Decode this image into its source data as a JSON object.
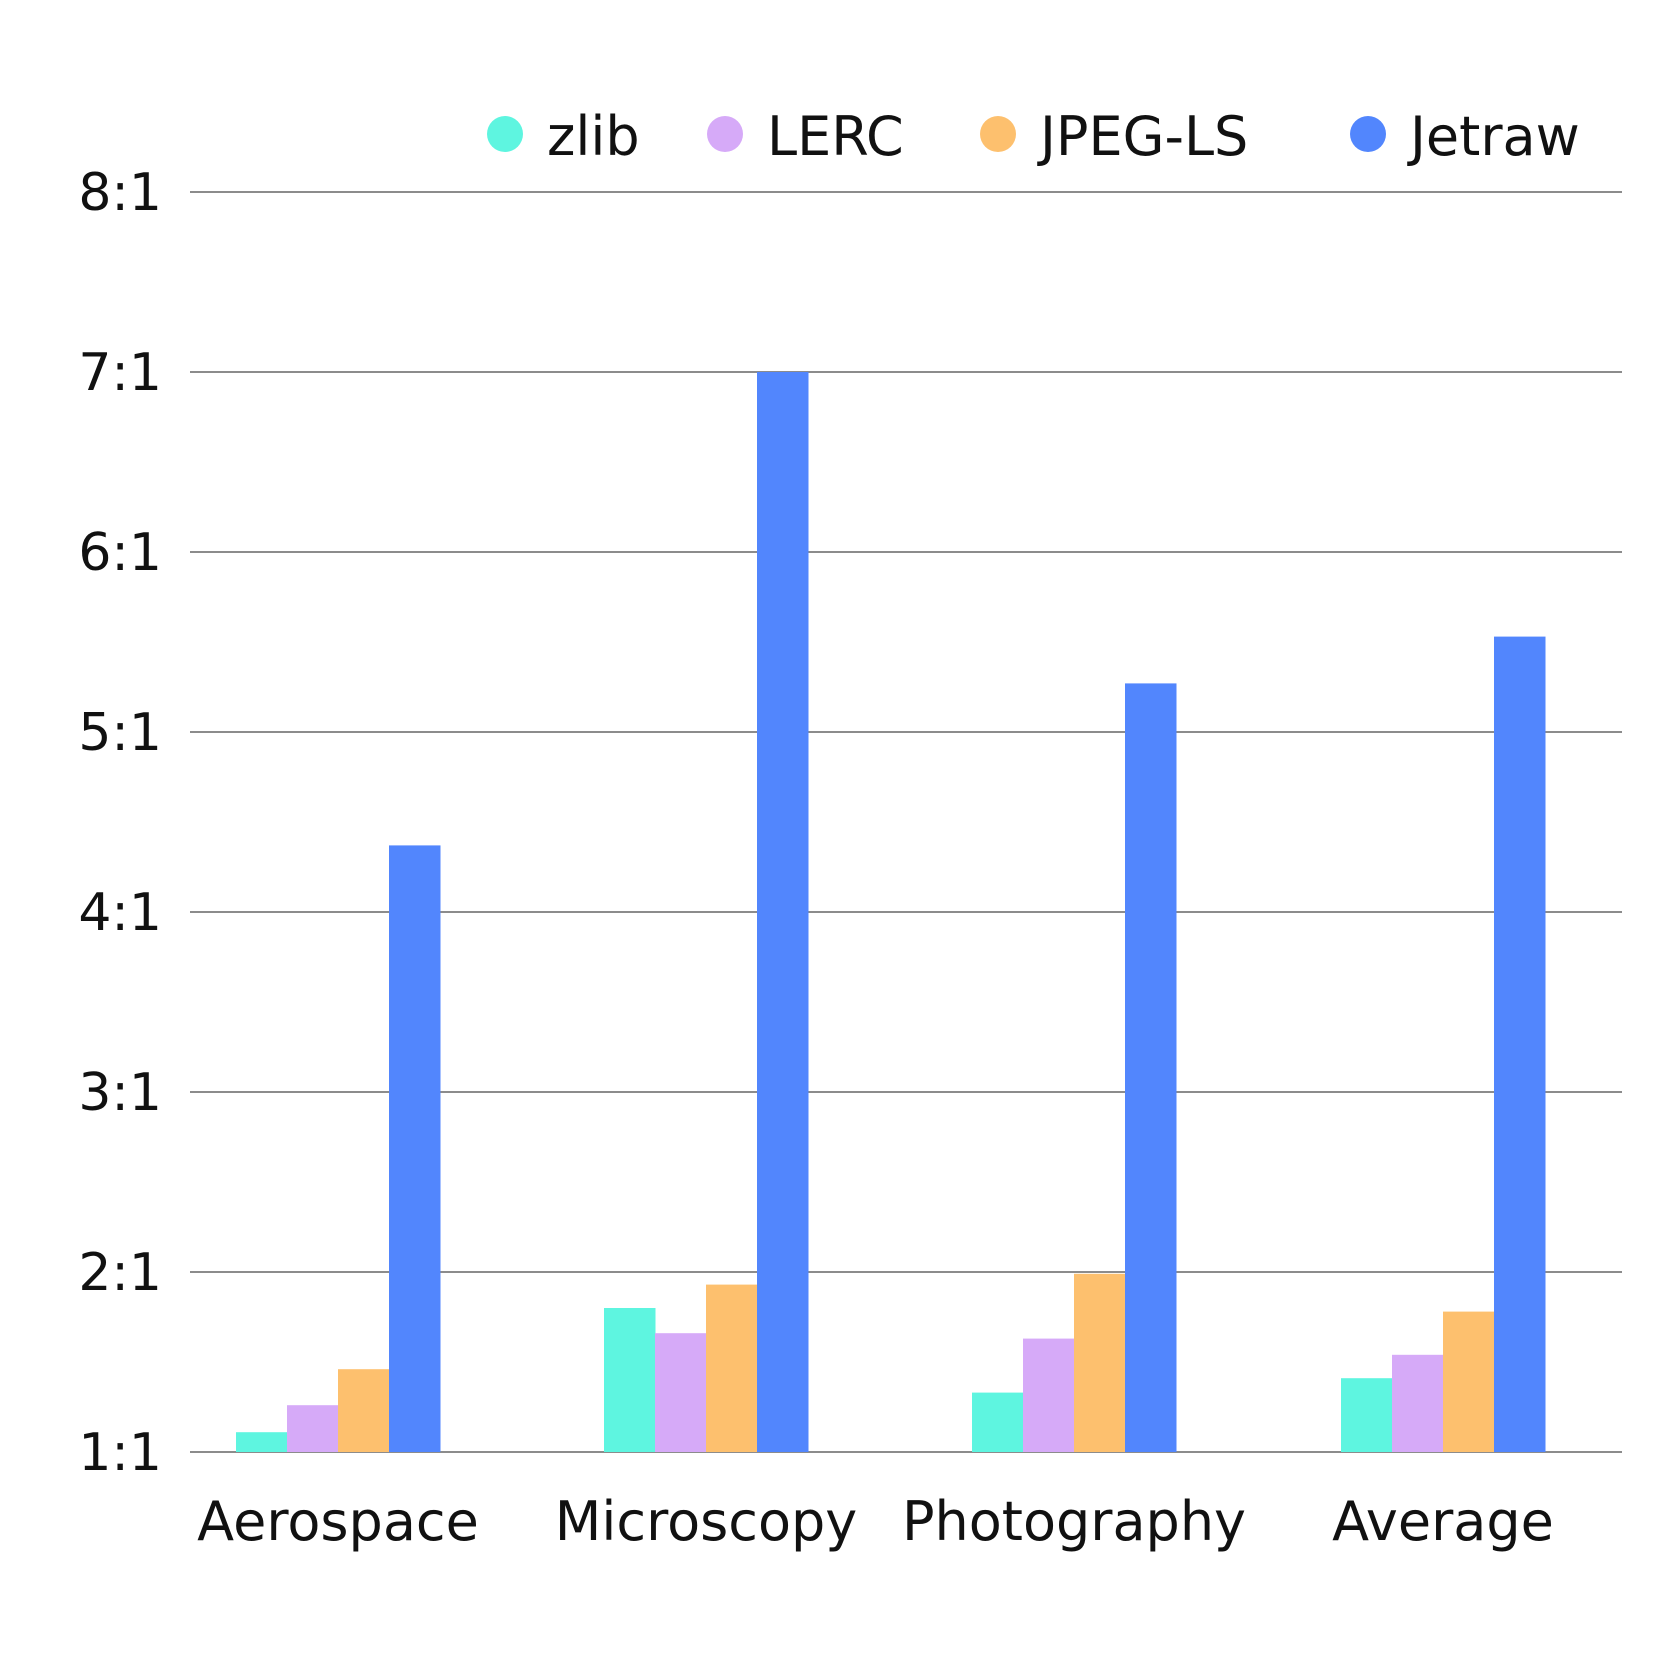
{
  "chart_data": {
    "type": "bar",
    "title": "",
    "xlabel": "",
    "ylabel": "",
    "categories": [
      "Aerospace",
      "Microscopy",
      "Photography",
      "Average"
    ],
    "y_ticks": [
      1,
      2,
      3,
      4,
      5,
      6,
      7,
      8
    ],
    "y_tick_labels": [
      "1:1",
      "2:1",
      "3:1",
      "4:1",
      "5:1",
      "6:1",
      "7:1",
      "8:1"
    ],
    "ylim": [
      1,
      8
    ],
    "grid": true,
    "legend_position": "top-right",
    "series": [
      {
        "name": "zlib",
        "color": "#5ef5e0",
        "values": [
          1.11,
          1.8,
          1.33,
          1.41
        ]
      },
      {
        "name": "LERC",
        "color": "#d6aaf8",
        "values": [
          1.26,
          1.66,
          1.63,
          1.54
        ]
      },
      {
        "name": "JPEG-LS",
        "color": "#fdc06e",
        "values": [
          1.46,
          1.93,
          1.99,
          1.78
        ]
      },
      {
        "name": "Jetraw",
        "color": "#5286fd",
        "values": [
          4.37,
          7.0,
          5.27,
          5.53
        ]
      }
    ]
  }
}
